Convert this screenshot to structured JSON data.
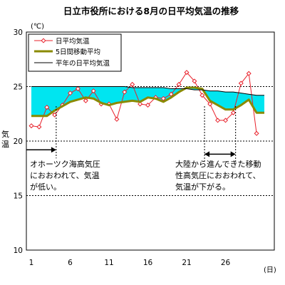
{
  "chart_data": {
    "type": "line",
    "title": "日立市役所における8月の日平均気温の推移",
    "y_unit": "(℃)",
    "ylabel_chars": [
      "気",
      "温"
    ],
    "x_unit": "(日)",
    "ylim": [
      10,
      30
    ],
    "xlim": [
      1,
      31
    ],
    "y_ticks": [
      "10",
      "15",
      "20",
      "25",
      "30"
    ],
    "x_ticks": [
      "1",
      "6",
      "11",
      "16",
      "21",
      "26"
    ],
    "dashed_grid_y": [
      15,
      20,
      25
    ],
    "x": [
      1,
      2,
      3,
      4,
      5,
      6,
      7,
      8,
      9,
      10,
      11,
      12,
      13,
      14,
      15,
      16,
      17,
      18,
      19,
      20,
      21,
      22,
      23,
      24,
      25,
      26,
      27,
      28,
      29,
      30,
      31
    ],
    "series": [
      {
        "name": "日平均気温",
        "style": "line-diamond",
        "color": "#e8202a",
        "values": [
          21.4,
          21.3,
          23.1,
          22.4,
          23.3,
          24.4,
          24.8,
          23.7,
          24.6,
          23.4,
          23.4,
          22.0,
          24.5,
          25.2,
          23.4,
          23.3,
          24.0,
          23.9,
          24.3,
          25.2,
          26.3,
          25.5,
          24.2,
          23.4,
          21.9,
          21.9,
          22.6,
          25.3,
          26.2,
          20.7,
          null
        ]
      },
      {
        "name": "5日間移動平均",
        "style": "thick-line",
        "color": "#8a8a00",
        "values": [
          22.3,
          22.3,
          22.3,
          22.8,
          23.2,
          23.6,
          23.8,
          24.0,
          23.9,
          23.5,
          23.3,
          23.5,
          23.6,
          23.7,
          23.6,
          24.0,
          23.9,
          23.6,
          24.0,
          24.5,
          24.9,
          24.9,
          24.8,
          23.7,
          23.3,
          22.9,
          22.9,
          23.3,
          23.8,
          22.6,
          22.6
        ]
      },
      {
        "name": "平年の日平均気温",
        "style": "thin-line",
        "color": "#000000",
        "values": [
          25.0,
          25.0,
          25.0,
          25.0,
          25.0,
          25.0,
          25.0,
          25.0,
          25.0,
          25.0,
          25.0,
          25.0,
          25.0,
          24.9,
          24.9,
          24.9,
          24.9,
          24.9,
          24.8,
          24.8,
          24.8,
          24.7,
          24.7,
          24.6,
          24.6,
          24.5,
          24.5,
          24.4,
          24.3,
          24.2,
          24.2
        ]
      }
    ],
    "fill_between": {
      "upper": "平年の日平均気温",
      "lower": "5日間移動平均",
      "color": "#00e5f0"
    },
    "legend": {
      "placement": "top-left"
    },
    "annotations": [
      {
        "lines": [
          "オホーツク海高気圧",
          "におおわれて、気温",
          "が低い。"
        ],
        "x_start": 1,
        "x_end": 4.2,
        "arrow_y": 19.2,
        "dashed_x": 4.2
      },
      {
        "lines": [
          "大陸から進んできた移動",
          "性高気圧におおわれて、",
          "気温が下がる。"
        ],
        "x_start": 23.3,
        "x_end": 27.3,
        "arrow_y": 18.8,
        "dashed_x": [
          23.3,
          27.3
        ]
      }
    ]
  }
}
